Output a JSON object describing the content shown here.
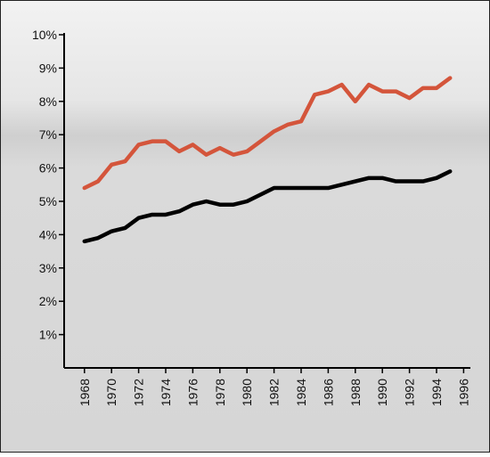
{
  "chart_data": {
    "type": "line",
    "x": [
      1968,
      1969,
      1970,
      1971,
      1972,
      1973,
      1974,
      1975,
      1976,
      1977,
      1978,
      1979,
      1980,
      1981,
      1982,
      1983,
      1984,
      1985,
      1986,
      1987,
      1988,
      1989,
      1990,
      1991,
      1992,
      1993,
      1994,
      1995
    ],
    "series": [
      {
        "color": "#d4553b",
        "values": [
          5.4,
          5.6,
          6.1,
          6.2,
          6.7,
          6.8,
          6.8,
          6.5,
          6.7,
          6.4,
          6.6,
          6.4,
          6.5,
          6.8,
          7.1,
          7.3,
          7.4,
          8.2,
          8.3,
          8.5,
          8.0,
          8.5,
          8.3,
          8.3,
          8.1,
          8.4,
          8.4,
          8.7
        ]
      },
      {
        "color": "#000000",
        "values": [
          3.8,
          3.9,
          4.1,
          4.2,
          4.5,
          4.6,
          4.6,
          4.7,
          4.9,
          5.0,
          4.9,
          4.9,
          5.0,
          5.2,
          5.4,
          5.4,
          5.4,
          5.4,
          5.4,
          5.5,
          5.6,
          5.7,
          5.7,
          5.6,
          5.6,
          5.6,
          5.7,
          5.9
        ]
      }
    ],
    "xlim": [
      1966.5,
      1996.5
    ],
    "xticks": [
      1968,
      1970,
      1972,
      1974,
      1976,
      1978,
      1980,
      1982,
      1984,
      1986,
      1988,
      1990,
      1992,
      1994,
      1996
    ],
    "ylim": [
      0,
      10
    ],
    "yticks": [
      {
        "value": 1,
        "label": "1%"
      },
      {
        "value": 2,
        "label": "2%"
      },
      {
        "value": 3,
        "label": "3%"
      },
      {
        "value": 4,
        "label": "4%"
      },
      {
        "value": 5,
        "label": "5%"
      },
      {
        "value": 6,
        "label": "6%"
      },
      {
        "value": 7,
        "label": "7%"
      },
      {
        "value": 8,
        "label": "8%"
      },
      {
        "value": 9,
        "label": "9%"
      },
      {
        "value": 10,
        "label": "10%"
      }
    ]
  }
}
